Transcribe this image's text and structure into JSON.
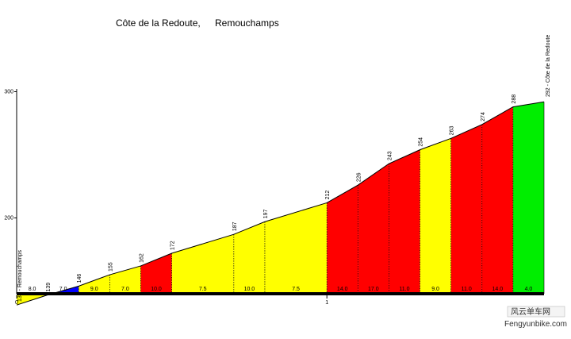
{
  "chart_data": {
    "type": "area",
    "title": "Côte de la Redoute,",
    "title_place": "Remouchamps",
    "ylim": [
      100,
      300
    ],
    "xlim": [
      0,
      1.7
    ],
    "y_ticks": [
      {
        "value": 200,
        "label": "200"
      },
      {
        "value": 300,
        "label": "300"
      }
    ],
    "x_ticks": [
      {
        "value": 0,
        "label": "0"
      },
      {
        "value": 1,
        "label": "1"
      }
    ],
    "start_label": "131 - Remouchamps",
    "end_label": "292 - Côte de la Redoute",
    "points": [
      {
        "x": 0,
        "elevation": 131,
        "label": ""
      },
      {
        "x": 0.1,
        "elevation": 139,
        "label": "139"
      },
      {
        "x": 0.2,
        "elevation": 146,
        "label": "146"
      },
      {
        "x": 0.3,
        "elevation": 155,
        "label": "155"
      },
      {
        "x": 0.4,
        "elevation": 162,
        "label": "162"
      },
      {
        "x": 0.5,
        "elevation": 172,
        "label": "172"
      },
      {
        "x": 0.7,
        "elevation": 187,
        "label": "187"
      },
      {
        "x": 0.8,
        "elevation": 197,
        "label": "197"
      },
      {
        "x": 1.0,
        "elevation": 212,
        "label": "212"
      },
      {
        "x": 1.1,
        "elevation": 226,
        "label": "226"
      },
      {
        "x": 1.2,
        "elevation": 243,
        "label": "243"
      },
      {
        "x": 1.3,
        "elevation": 254,
        "label": "254"
      },
      {
        "x": 1.4,
        "elevation": 263,
        "label": "263"
      },
      {
        "x": 1.5,
        "elevation": 274,
        "label": "274"
      },
      {
        "x": 1.6,
        "elevation": 288,
        "label": "288"
      },
      {
        "x": 1.7,
        "elevation": 292,
        "label": ""
      }
    ],
    "segments": [
      {
        "x0": 0,
        "x1": 0.1,
        "gradient": "8.0",
        "color": "#ffff00"
      },
      {
        "x0": 0.1,
        "x1": 0.2,
        "gradient": "7.0",
        "color": "#0000ff"
      },
      {
        "x0": 0.2,
        "x1": 0.3,
        "gradient": "9.0",
        "color": "#ffff00"
      },
      {
        "x0": 0.3,
        "x1": 0.4,
        "gradient": "7.0",
        "color": "#ffff00"
      },
      {
        "x0": 0.4,
        "x1": 0.5,
        "gradient": "10.0",
        "color": "#ff0000"
      },
      {
        "x0": 0.5,
        "x1": 0.7,
        "gradient": "7.5",
        "color": "#ffff00"
      },
      {
        "x0": 0.7,
        "x1": 0.8,
        "gradient": "10.0",
        "color": "#ffff00"
      },
      {
        "x0": 0.8,
        "x1": 1.0,
        "gradient": "7.5",
        "color": "#ffff00"
      },
      {
        "x0": 1.0,
        "x1": 1.1,
        "gradient": "14.0",
        "color": "#ff0000"
      },
      {
        "x0": 1.1,
        "x1": 1.2,
        "gradient": "17.0",
        "color": "#ff0000"
      },
      {
        "x0": 1.2,
        "x1": 1.3,
        "gradient": "11.0",
        "color": "#ff0000"
      },
      {
        "x0": 1.3,
        "x1": 1.4,
        "gradient": "9.0",
        "color": "#ffff00"
      },
      {
        "x0": 1.4,
        "x1": 1.5,
        "gradient": "11.0",
        "color": "#ff0000"
      },
      {
        "x0": 1.5,
        "x1": 1.6,
        "gradient": "14.0",
        "color": "#ff0000"
      },
      {
        "x0": 1.6,
        "x1": 1.7,
        "gradient": "4.0",
        "color": "#00ee00"
      }
    ],
    "grid": false,
    "legend": "none"
  },
  "watermark": {
    "top": "风云单车网",
    "bottom": "Fengyunbike.com"
  }
}
